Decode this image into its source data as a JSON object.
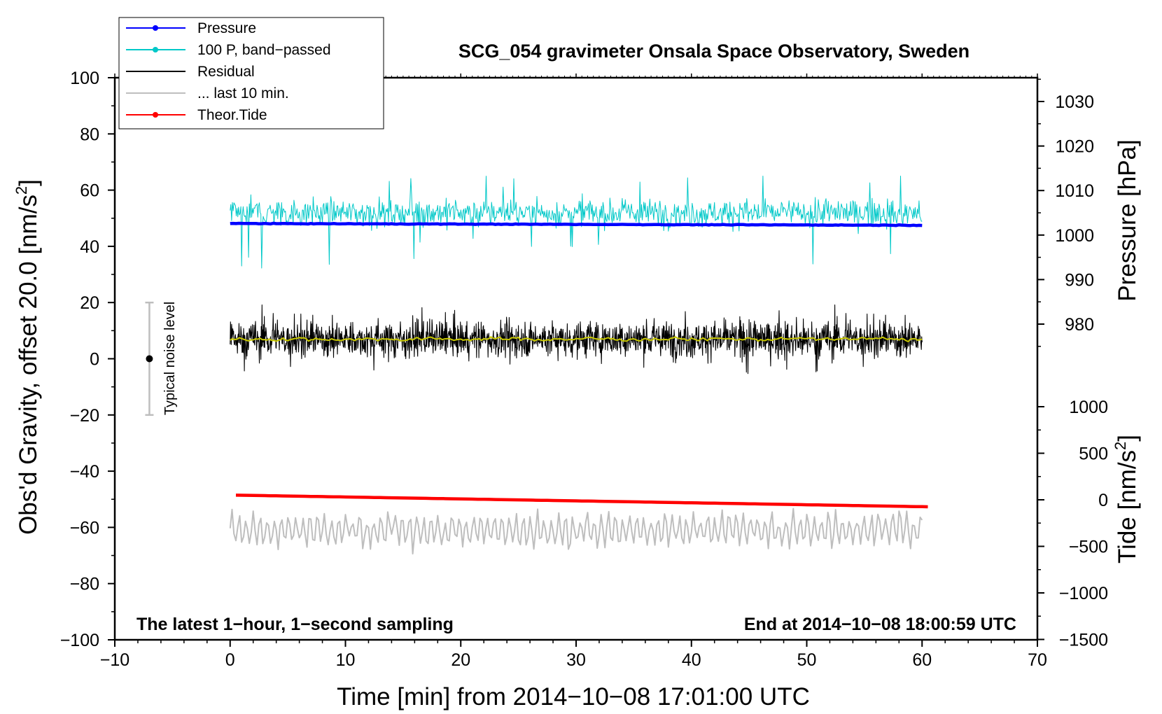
{
  "chart_data": {
    "type": "line",
    "title": "SCG_054 gravimeter Onsala Space Observatory, Sweden",
    "xlabel": "Time [min] from 2014−10−08 17:01:00 UTC",
    "ylabel_left": "Obs'd Gravity, offset 20.0 [nm/s",
    "ylabel_left_exp": "2",
    "ylabel_left_close": "]",
    "ylabel_right_pressure": "Pressure [hPa]",
    "ylabel_right_tide": "Tide [nm/s",
    "ylabel_right_tide_exp": "2",
    "ylabel_right_tide_close": "]",
    "xlim": [
      -10,
      70
    ],
    "ylim": [
      -100,
      100
    ],
    "pressure_axis": {
      "range": [
        970,
        1035
      ],
      "ticks": [
        980,
        990,
        1000,
        1010,
        1020,
        1030
      ]
    },
    "tide_axis": {
      "range": [
        -1500,
        1200
      ],
      "ticks": [
        -1500,
        -1000,
        -500,
        0,
        500,
        1000
      ]
    },
    "x_ticks": [
      -10,
      0,
      10,
      20,
      30,
      40,
      50,
      60,
      70
    ],
    "x_tick_labels": [
      "−10",
      "0",
      "10",
      "20",
      "30",
      "40",
      "50",
      "60",
      "70"
    ],
    "y_ticks": [
      -100,
      -80,
      -60,
      -40,
      -20,
      0,
      20,
      40,
      60,
      80,
      100
    ],
    "y_tick_labels": [
      "−100",
      "−80",
      "−60",
      "−40",
      "−20",
      "0",
      "20",
      "40",
      "60",
      "80",
      "100"
    ],
    "pressure_tick_labels": [
      "980",
      "990",
      "1000",
      "1010",
      "1020",
      "1030"
    ],
    "tide_tick_labels": [
      "−1500",
      "−1000",
      "−500",
      "0",
      "500",
      "1000"
    ],
    "annotation_left": "The latest 1−hour, 1−second sampling",
    "annotation_right": "End at 2014−10−08 18:00:59 UTC",
    "noise_label": "Typical noise level",
    "noise_bar": {
      "x": -7,
      "y_center": 0,
      "y_min": -20,
      "y_max": 20
    },
    "legend": [
      {
        "label": "Pressure",
        "color": "#0000ff",
        "marker": true
      },
      {
        "label": "100 P, band−passed",
        "color": "#00c8c8",
        "marker": true
      },
      {
        "label": "Residual",
        "color": "#000000",
        "marker": false
      },
      {
        "label": "... last 10 min.",
        "color": "#bebebe",
        "marker": false
      },
      {
        "label": "Theor.Tide",
        "color": "#ff0000",
        "marker": true
      }
    ],
    "series": [
      {
        "name": "Pressure",
        "axis": "pressure",
        "color": "#0000ff",
        "x_range": [
          0,
          60
        ],
        "start": 1002.6,
        "end": 1002.2,
        "noise": 0.15
      },
      {
        "name": "100 P, band−passed",
        "axis": "gravity",
        "color": "#00c8c8",
        "x_range": [
          0,
          60
        ],
        "center": 52,
        "noise": 3.5,
        "spike_min": 24,
        "spike_max": 65
      },
      {
        "name": "Residual",
        "axis": "gravity",
        "color": "#000000",
        "x_range": [
          0,
          60
        ],
        "center": 7,
        "noise": 4.5,
        "min": -7.5,
        "max": 20
      },
      {
        "name": "Residual smoothed",
        "axis": "gravity",
        "color": "#c8c800",
        "x_range": [
          0,
          60
        ],
        "center": 7,
        "noise": 0.8
      },
      {
        "name": "... last 10 min.",
        "axis": "gravity",
        "color": "#bebebe",
        "x_range": [
          0,
          60
        ],
        "center": -61,
        "noise": 5,
        "min": -74,
        "max": -50
      },
      {
        "name": "Theor.Tide",
        "axis": "tide",
        "color": "#ff0000",
        "x_range": [
          0.5,
          60.5
        ],
        "start": 50,
        "end": -75
      }
    ]
  }
}
